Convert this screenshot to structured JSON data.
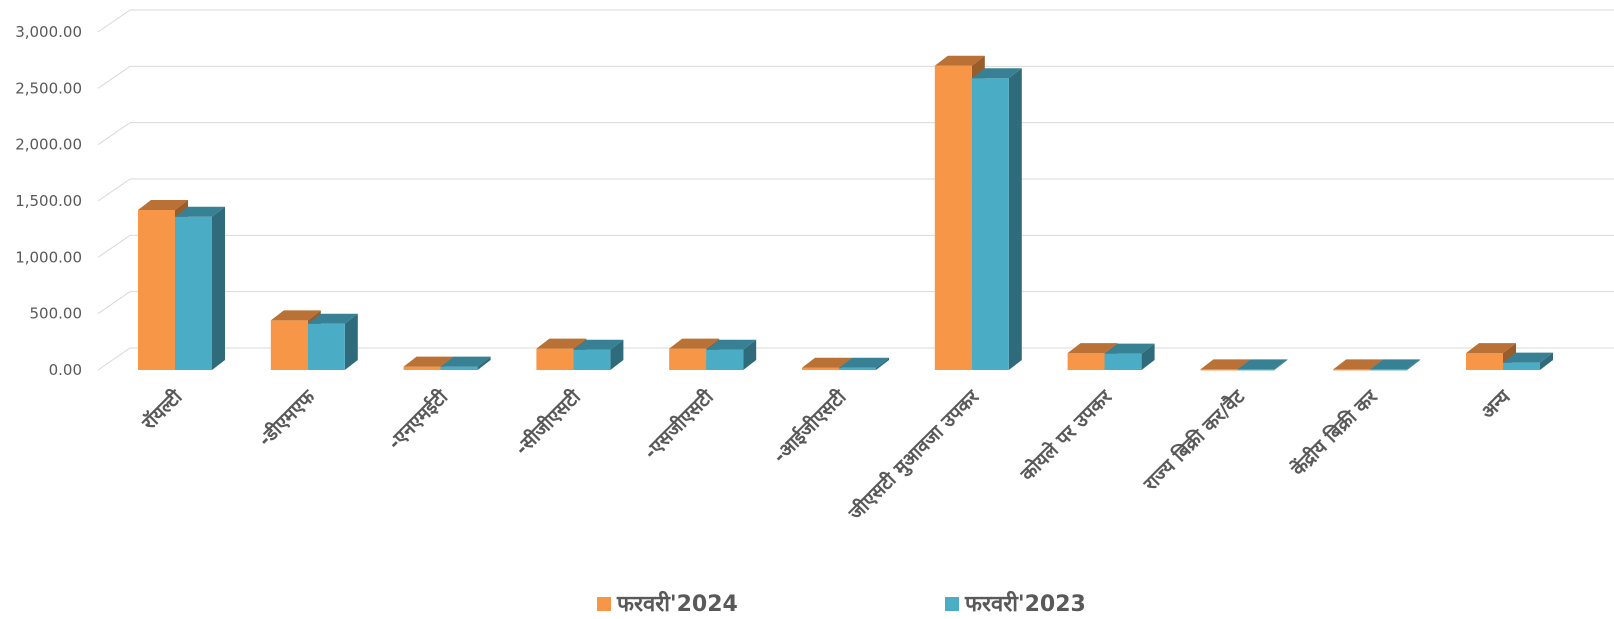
{
  "chart_data": {
    "type": "bar",
    "categories": [
      "रॉयल्टी",
      "-डीएमएफ",
      "-एनएमईटी",
      "-सीजीएसटी",
      "-एसजीएसटी",
      "-आईजीएसटी",
      "जीएसटी मुआवजा उपकर",
      "कोयले पर उपकर",
      "राज्य बिक्री कर/वैट",
      "केंद्रीय बिक्री कर",
      "अन्य"
    ],
    "series": [
      {
        "name": "फरवरी'2024",
        "color": "#F79646",
        "values": [
          1420,
          440,
          30,
          190,
          190,
          20,
          2700,
          150,
          5,
          5,
          150
        ]
      },
      {
        "name": "फरवरी'2023",
        "color": "#4BACC6",
        "values": [
          1360,
          410,
          30,
          180,
          180,
          20,
          2590,
          145,
          5,
          5,
          65
        ]
      }
    ],
    "yticks": [
      "0.00",
      "500.00",
      "1,000.00",
      "1,500.00",
      "2,000.00",
      "2,500.00",
      "3,000.00"
    ],
    "ylim": [
      0,
      3000
    ],
    "grid": true,
    "legend_position": "bottom",
    "title": "",
    "xlabel": "",
    "ylabel": ""
  }
}
